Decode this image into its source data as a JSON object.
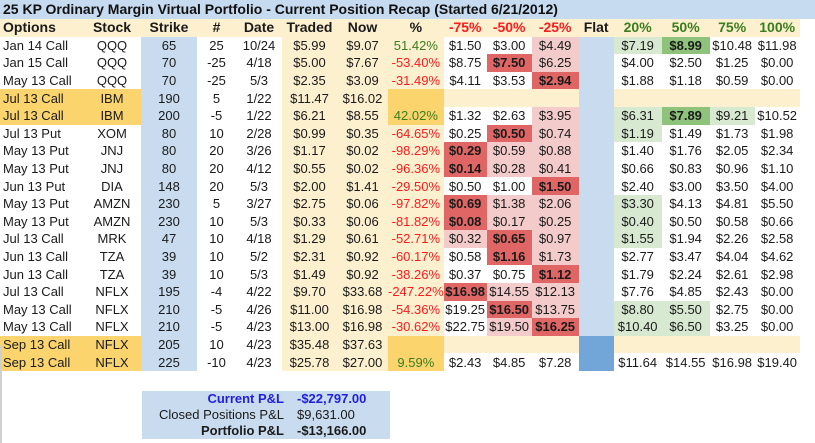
{
  "title": "25 KP Ordinary Margin Virtual Portfolio - Current Position Recap (Started 6/21/2012)",
  "headers": [
    "Options",
    "Stock",
    "Strike",
    "#",
    "Date",
    "Traded",
    "Now",
    "%",
    "-75%",
    "-50%",
    "-25%",
    "Flat",
    "20%",
    "50%",
    "75%",
    "100%"
  ],
  "header_colors": {
    "loss": "#ff1a1a",
    "gain": "#3a7d1e"
  },
  "rows": [
    {
      "option": "Jan 14 Call",
      "stock": "QQQ",
      "strike": "65",
      "qty": "25",
      "date": "10/24",
      "traded": "$5.99",
      "now": "$9.07",
      "pct": "51.42%",
      "pct_sign": "pos",
      "m75": "$1.50",
      "m50": "$3.00",
      "m25": "$4.49",
      "p20": "$7.19",
      "p50": "$8.99",
      "p75": "$10.48",
      "p100": "$11.98",
      "styles": {
        "m75": "bw",
        "m50": "bw",
        "m25": "lp",
        "p20": "lg",
        "p50": "dg",
        "p75": "bw",
        "p100": "bw"
      },
      "highlight": false
    },
    {
      "option": "Jan 15 Call",
      "stock": "QQQ",
      "strike": "70",
      "qty": "-25",
      "date": "4/18",
      "traded": "$5.00",
      "now": "$7.67",
      "pct": "-53.40%",
      "pct_sign": "neg",
      "m75": "$8.75",
      "m50": "$7.50",
      "m25": "$6.25",
      "p20": "$4.00",
      "p50": "$2.50",
      "p75": "$1.25",
      "p100": "$0.00",
      "styles": {
        "m75": "bw",
        "m50": "dp",
        "m25": "lp",
        "p20": "bw",
        "p50": "bw",
        "p75": "bw",
        "p100": "bw"
      },
      "highlight": false
    },
    {
      "option": "May 13 Call",
      "stock": "QQQ",
      "strike": "70",
      "qty": "-25",
      "date": "5/3",
      "traded": "$2.35",
      "now": "$3.09",
      "pct": "-31.49%",
      "pct_sign": "neg",
      "m75": "$4.11",
      "m50": "$3.53",
      "m25": "$2.94",
      "p20": "$1.88",
      "p50": "$1.18",
      "p75": "$0.59",
      "p100": "$0.00",
      "styles": {
        "m75": "bw",
        "m50": "bw",
        "m25": "dp",
        "p20": "bw",
        "p50": "bw",
        "p75": "bw",
        "p100": "bw"
      },
      "highlight": false
    },
    {
      "option": "Jul 13 Call",
      "stock": "IBM",
      "strike": "190",
      "qty": "5",
      "date": "1/22",
      "traded": "$11.47",
      "now": "$16.02",
      "pct": "",
      "pct_sign": "none",
      "m75": "",
      "m50": "",
      "m25": "",
      "p20": "",
      "p50": "",
      "p75": "",
      "p100": "",
      "styles": {
        "m75": "cream",
        "m50": "cream",
        "m25": "cream",
        "p20": "cream",
        "p50": "cream",
        "p75": "cream",
        "p100": "cream"
      },
      "highlight": true
    },
    {
      "option": "Jul 13 Call",
      "stock": "IBM",
      "strike": "200",
      "qty": "-5",
      "date": "1/22",
      "traded": "$6.21",
      "now": "$8.55",
      "pct": "42.02%",
      "pct_sign": "pos",
      "m75": "$1.32",
      "m50": "$2.63",
      "m25": "$3.95",
      "p20": "$6.31",
      "p50": "$7.89",
      "p75": "$9.21",
      "p100": "$10.52",
      "styles": {
        "m75": "bw",
        "m50": "bw",
        "m25": "lp",
        "p20": "lg",
        "p50": "dg",
        "p75": "lg",
        "p100": "bw"
      },
      "highlight": true
    },
    {
      "option": "Jul 13 Put",
      "stock": "XOM",
      "strike": "80",
      "qty": "10",
      "date": "2/28",
      "traded": "$0.99",
      "now": "$0.35",
      "pct": "-64.65%",
      "pct_sign": "neg",
      "m75": "$0.25",
      "m50": "$0.50",
      "m25": "$0.74",
      "p20": "$1.19",
      "p50": "$1.49",
      "p75": "$1.73",
      "p100": "$1.98",
      "styles": {
        "m75": "bw",
        "m50": "dp",
        "m25": "lp",
        "p20": "lg",
        "p50": "bw",
        "p75": "bw",
        "p100": "bw"
      },
      "highlight": false
    },
    {
      "option": "May 13 Put",
      "stock": "JNJ",
      "strike": "80",
      "qty": "20",
      "date": "3/26",
      "traded": "$1.17",
      "now": "$0.02",
      "pct": "-98.29%",
      "pct_sign": "neg",
      "m75": "$0.29",
      "m50": "$0.59",
      "m25": "$0.88",
      "p20": "$1.40",
      "p50": "$1.76",
      "p75": "$2.05",
      "p100": "$2.34",
      "styles": {
        "m75": "dp",
        "m50": "lp",
        "m25": "lp",
        "p20": "bw",
        "p50": "bw",
        "p75": "bw",
        "p100": "bw"
      },
      "highlight": false
    },
    {
      "option": "May 13 Put",
      "stock": "JNJ",
      "strike": "80",
      "qty": "20",
      "date": "4/12",
      "traded": "$0.55",
      "now": "$0.02",
      "pct": "-96.36%",
      "pct_sign": "neg",
      "m75": "$0.14",
      "m50": "$0.28",
      "m25": "$0.41",
      "p20": "$0.66",
      "p50": "$0.83",
      "p75": "$0.96",
      "p100": "$1.10",
      "styles": {
        "m75": "dp",
        "m50": "lp",
        "m25": "lp",
        "p20": "bw",
        "p50": "bw",
        "p75": "bw",
        "p100": "bw"
      },
      "highlight": false
    },
    {
      "option": "Jun 13 Put",
      "stock": "DIA",
      "strike": "148",
      "qty": "20",
      "date": "5/3",
      "traded": "$2.00",
      "now": "$1.41",
      "pct": "-29.50%",
      "pct_sign": "neg",
      "m75": "$0.50",
      "m50": "$1.00",
      "m25": "$1.50",
      "p20": "$2.40",
      "p50": "$3.00",
      "p75": "$3.50",
      "p100": "$4.00",
      "styles": {
        "m75": "bw",
        "m50": "bw",
        "m25": "dp",
        "p20": "bw",
        "p50": "bw",
        "p75": "bw",
        "p100": "bw"
      },
      "highlight": false
    },
    {
      "option": "May 13 Put",
      "stock": "AMZN",
      "strike": "230",
      "qty": "5",
      "date": "3/27",
      "traded": "$2.75",
      "now": "$0.06",
      "pct": "-97.82%",
      "pct_sign": "neg",
      "m75": "$0.69",
      "m50": "$1.38",
      "m25": "$2.06",
      "p20": "$3.30",
      "p50": "$4.13",
      "p75": "$4.81",
      "p100": "$5.50",
      "styles": {
        "m75": "dp",
        "m50": "lp",
        "m25": "lp",
        "p20": "lg",
        "p50": "bw",
        "p75": "bw",
        "p100": "bw"
      },
      "highlight": false
    },
    {
      "option": "May 13 Put",
      "stock": "AMZN",
      "strike": "230",
      "qty": "10",
      "date": "5/3",
      "traded": "$0.33",
      "now": "$0.06",
      "pct": "-81.82%",
      "pct_sign": "neg",
      "m75": "$0.08",
      "m50": "$0.17",
      "m25": "$0.25",
      "p20": "$0.40",
      "p50": "$0.50",
      "p75": "$0.58",
      "p100": "$0.66",
      "styles": {
        "m75": "dp",
        "m50": "lp",
        "m25": "lp",
        "p20": "lg",
        "p50": "bw",
        "p75": "bw",
        "p100": "bw"
      },
      "highlight": false
    },
    {
      "option": "Jul 13 Call",
      "stock": "MRK",
      "strike": "47",
      "qty": "10",
      "date": "4/18",
      "traded": "$1.29",
      "now": "$0.61",
      "pct": "-52.71%",
      "pct_sign": "neg",
      "m75": "$0.32",
      "m50": "$0.65",
      "m25": "$0.97",
      "p20": "$1.55",
      "p50": "$1.94",
      "p75": "$2.26",
      "p100": "$2.58",
      "styles": {
        "m75": "lp",
        "m50": "dp",
        "m25": "lp",
        "p20": "lg",
        "p50": "bw",
        "p75": "bw",
        "p100": "bw"
      },
      "highlight": false
    },
    {
      "option": "Jun 13 Call",
      "stock": "TZA",
      "strike": "39",
      "qty": "10",
      "date": "5/2",
      "traded": "$2.31",
      "now": "$0.92",
      "pct": "-60.17%",
      "pct_sign": "neg",
      "m75": "$0.58",
      "m50": "$1.16",
      "m25": "$1.73",
      "p20": "$2.77",
      "p50": "$3.47",
      "p75": "$4.04",
      "p100": "$4.62",
      "styles": {
        "m75": "bw",
        "m50": "dp",
        "m25": "lp",
        "p20": "bw",
        "p50": "bw",
        "p75": "bw",
        "p100": "bw"
      },
      "highlight": false
    },
    {
      "option": "Jun 13 Call",
      "stock": "TZA",
      "strike": "39",
      "qty": "10",
      "date": "5/3",
      "traded": "$1.49",
      "now": "$0.92",
      "pct": "-38.26%",
      "pct_sign": "neg",
      "m75": "$0.37",
      "m50": "$0.75",
      "m25": "$1.12",
      "p20": "$1.79",
      "p50": "$2.24",
      "p75": "$2.61",
      "p100": "$2.98",
      "styles": {
        "m75": "bw",
        "m50": "bw",
        "m25": "dp",
        "p20": "bw",
        "p50": "bw",
        "p75": "bw",
        "p100": "bw"
      },
      "highlight": false
    },
    {
      "option": "Jul 13 Call",
      "stock": "NFLX",
      "strike": "195",
      "qty": "-4",
      "date": "4/22",
      "traded": "$9.70",
      "now": "$33.68",
      "pct": "-247.22%",
      "pct_sign": "neg",
      "m75": "$16.98",
      "m50": "$14.55",
      "m25": "$12.13",
      "p20": "$7.76",
      "p50": "$4.85",
      "p75": "$2.43",
      "p100": "$0.00",
      "styles": {
        "m75": "dp",
        "m50": "lp",
        "m25": "lp",
        "p20": "bw",
        "p50": "bw",
        "p75": "bw",
        "p100": "bw"
      },
      "highlight": false
    },
    {
      "option": "May 13 Call",
      "stock": "NFLX",
      "strike": "210",
      "qty": "-5",
      "date": "4/26",
      "traded": "$11.00",
      "now": "$16.98",
      "pct": "-54.36%",
      "pct_sign": "neg",
      "m75": "$19.25",
      "m50": "$16.50",
      "m25": "$13.75",
      "p20": "$8.80",
      "p50": "$5.50",
      "p75": "$2.75",
      "p100": "$0.00",
      "styles": {
        "m75": "bw",
        "m50": "dp",
        "m25": "lp",
        "p20": "lg",
        "p50": "lg",
        "p75": "bw",
        "p100": "bw"
      },
      "highlight": false
    },
    {
      "option": "May 13 Call",
      "stock": "NFLX",
      "strike": "210",
      "qty": "-5",
      "date": "4/23",
      "traded": "$13.00",
      "now": "$16.98",
      "pct": "-30.62%",
      "pct_sign": "neg",
      "m75": "$22.75",
      "m50": "$19.50",
      "m25": "$16.25",
      "p20": "$10.40",
      "p50": "$6.50",
      "p75": "$3.25",
      "p100": "$0.00",
      "styles": {
        "m75": "bw",
        "m50": "lp",
        "m25": "dp",
        "p20": "lg",
        "p50": "lg",
        "p75": "bw",
        "p100": "bw"
      },
      "highlight": false
    },
    {
      "option": "Sep 13 Call",
      "stock": "NFLX",
      "strike": "205",
      "qty": "10",
      "date": "4/23",
      "traded": "$35.48",
      "now": "$37.63",
      "pct": "",
      "pct_sign": "none",
      "m75": "",
      "m50": "",
      "m25": "",
      "p20": "",
      "p50": "",
      "p75": "",
      "p100": "",
      "styles": {
        "m75": "cream",
        "m50": "cream",
        "m25": "cream",
        "p20": "cream",
        "p50": "cream",
        "p75": "cream",
        "p100": "cream"
      },
      "highlight": true,
      "flat_dark": true
    },
    {
      "option": "Sep 13 Call",
      "stock": "NFLX",
      "strike": "225",
      "qty": "-10",
      "date": "4/23",
      "traded": "$25.78",
      "now": "$27.00",
      "pct": "9.59%",
      "pct_sign": "pos",
      "m75": "$2.43",
      "m50": "$4.85",
      "m25": "$7.28",
      "p20": "$11.64",
      "p50": "$14.55",
      "p75": "$16.98",
      "p100": "$19.40",
      "styles": {
        "m75": "bw",
        "m50": "bw",
        "m25": "bw",
        "p20": "bw",
        "p50": "bw",
        "p75": "bw",
        "p100": "bw"
      },
      "highlight": true,
      "flat_dark": true
    }
  ],
  "summary": {
    "current_label": "Current P&L",
    "current_value": "-$22,797.00",
    "closed_label": "Closed Positions P&L",
    "closed_value": "$9,631.00",
    "portfolio_label": "Portfolio P&L",
    "portfolio_value": "-$13,166.00"
  },
  "colors": {
    "title_bg": "#c6daf0",
    "header_bg": "#fdf0cf",
    "highlight_row": "#fbd46e",
    "loss_dark": "#e06666",
    "loss_light": "#f3cbcb",
    "gain_light": "#d8e9d2",
    "gain_dark": "#8fc27a",
    "flat_col": "#c9dcef",
    "flat_col_dark": "#72a6d9"
  }
}
